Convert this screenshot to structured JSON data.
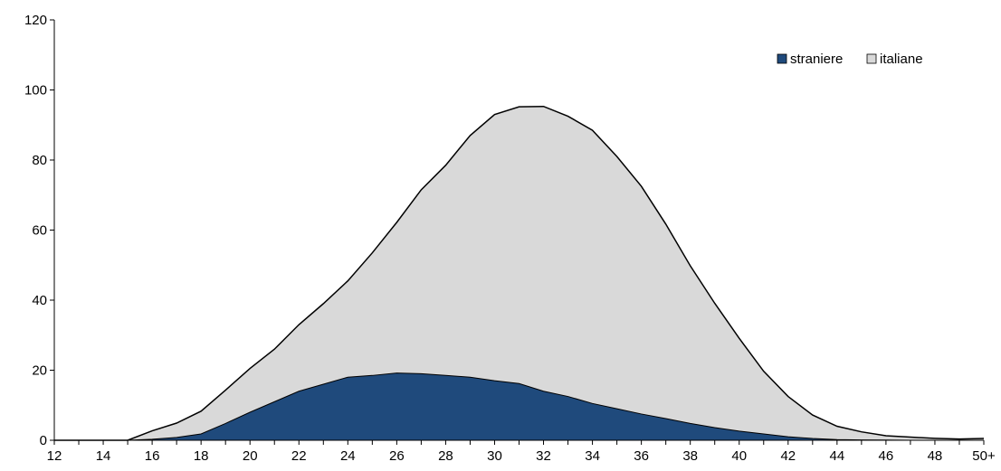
{
  "chart_data": {
    "type": "area",
    "stacked": true,
    "x": [
      "12",
      "13",
      "14",
      "15",
      "16",
      "17",
      "18",
      "19",
      "20",
      "21",
      "22",
      "23",
      "24",
      "25",
      "26",
      "27",
      "28",
      "29",
      "30",
      "31",
      "32",
      "33",
      "34",
      "35",
      "36",
      "37",
      "38",
      "39",
      "40",
      "41",
      "42",
      "43",
      "44",
      "45",
      "46",
      "47",
      "48",
      "49",
      "50+"
    ],
    "x_tick_labels": [
      "12",
      "14",
      "16",
      "18",
      "20",
      "22",
      "24",
      "26",
      "28",
      "30",
      "32",
      "34",
      "36",
      "38",
      "40",
      "42",
      "44",
      "46",
      "48",
      "50+"
    ],
    "y_ticks": [
      0,
      20,
      40,
      60,
      80,
      100,
      120
    ],
    "ylim": [
      0,
      120
    ],
    "grid": false,
    "legend_position": "top-right",
    "series": [
      {
        "name": "straniere",
        "color": "#1f4a7c",
        "values": [
          0,
          0,
          0,
          0,
          0.3,
          0.8,
          1.8,
          4.8,
          8.0,
          11.0,
          14.0,
          16.0,
          18.0,
          18.5,
          19.2,
          19.0,
          18.5,
          18.0,
          17.0,
          16.2,
          14.0,
          12.5,
          10.5,
          9.0,
          7.5,
          6.2,
          4.8,
          3.6,
          2.6,
          1.8,
          1.0,
          0.5,
          0.2,
          0.1,
          0.05,
          0,
          0,
          0,
          0
        ]
      },
      {
        "name": "italiane",
        "color": "#d9d9d9",
        "values": [
          0,
          0,
          0,
          0,
          2.4,
          4.1,
          6.5,
          9.5,
          12.5,
          15.0,
          19.0,
          23.0,
          27.5,
          35.0,
          43.0,
          52.5,
          60.0,
          69.0,
          76.0,
          79.0,
          81.3,
          80.0,
          78.0,
          72.0,
          65.0,
          55.5,
          45.0,
          35.5,
          26.5,
          17.9,
          11.5,
          6.7,
          3.8,
          2.3,
          1.25,
          0.9,
          0.55,
          0.35,
          0.5
        ]
      }
    ]
  }
}
